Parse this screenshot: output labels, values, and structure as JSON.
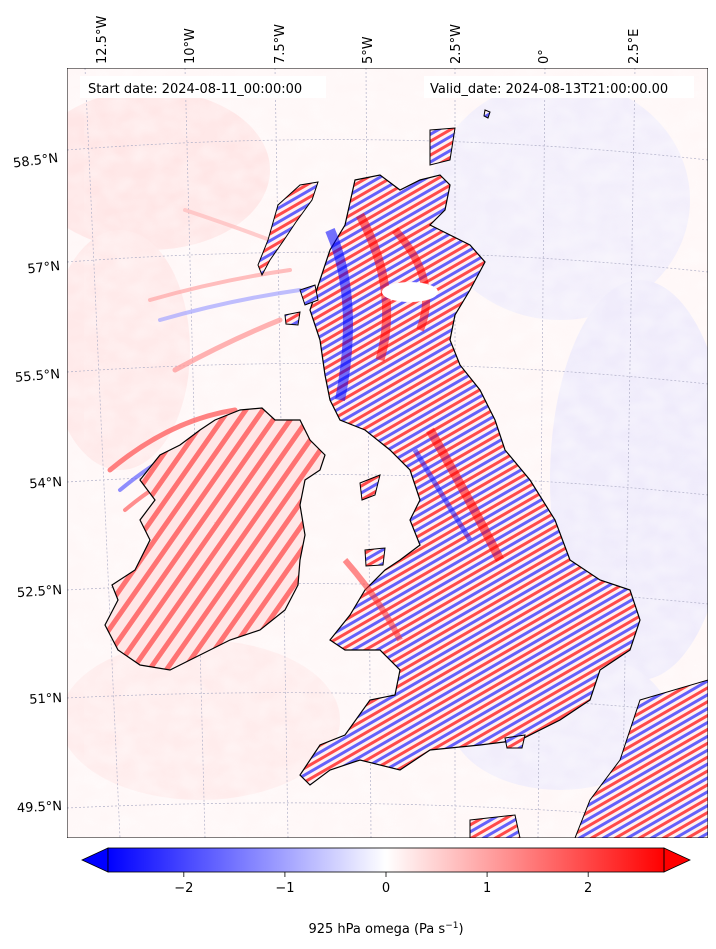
{
  "map": {
    "start_label": "Start date: 2024-08-11_00:00:00",
    "valid_label": "Valid_date: 2024-08-13T21:00:00.00",
    "lon_ticks": [
      "12.5°W",
      "10°W",
      "7.5°W",
      "5°W",
      "2.5°W",
      "0°",
      "2.5°E"
    ],
    "lat_ticks": [
      "58.5°N",
      "57°N",
      "55.5°N",
      "54°N",
      "52.5°N",
      "51°N",
      "49.5°N"
    ],
    "colors": {
      "negative": "#0000ff",
      "zero": "#ffffff",
      "positive": "#ff0000",
      "coastline": "#000000",
      "gridline": "#b0b0c8"
    }
  },
  "colorbar": {
    "min": -2.75,
    "max": 2.75,
    "ticks": [
      {
        "value": -2,
        "label": "−2"
      },
      {
        "value": -1,
        "label": "−1"
      },
      {
        "value": 0,
        "label": "0"
      },
      {
        "value": 1,
        "label": "1"
      },
      {
        "value": 2,
        "label": "2"
      }
    ],
    "variable": "925 hPa omega",
    "unit_base": "Pa s",
    "unit_exponent": "−1"
  }
}
